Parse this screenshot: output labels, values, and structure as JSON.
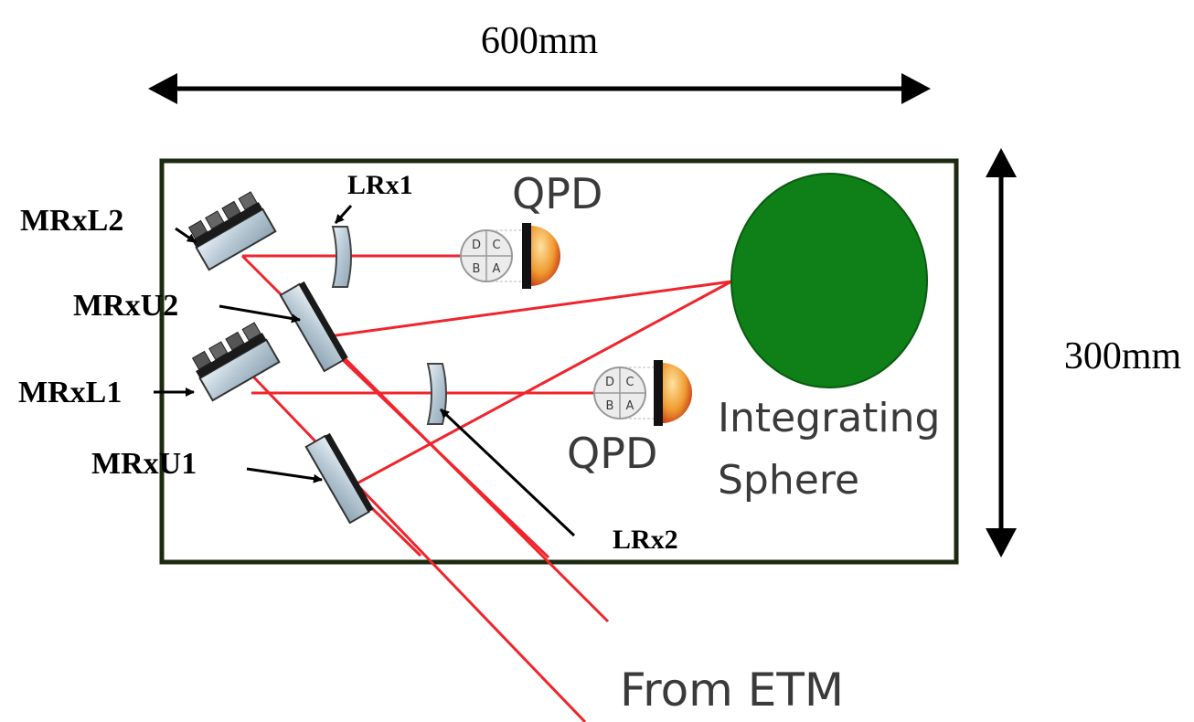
{
  "dimensions": {
    "width_label": "600mm",
    "height_label": "300mm"
  },
  "components": {
    "mirrors": [
      "MRxL2",
      "MRxU2",
      "MRxL1",
      "MRxU1"
    ],
    "lenses": [
      "LRx1",
      "LRx2"
    ],
    "qpd_top": "QPD",
    "qpd_bottom": "QPD",
    "qpd_quadrants": [
      "A",
      "B",
      "C",
      "D"
    ],
    "sphere_line1": "Integrating",
    "sphere_line2": "Sphere",
    "source": "From ETM"
  },
  "colors": {
    "beam": "#f0242c",
    "sphere": "#0f8018",
    "frame": "#1c2a10",
    "qpd_orange": "#f0a040"
  }
}
